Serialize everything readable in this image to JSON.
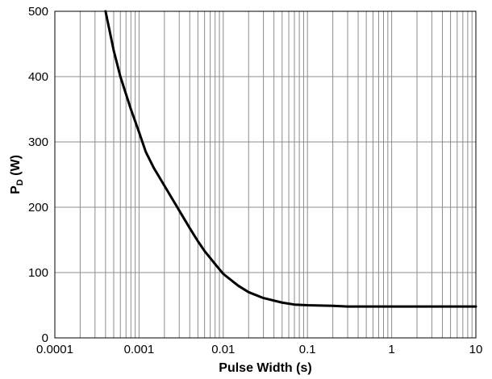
{
  "chart_data": {
    "type": "line",
    "title": "",
    "xlabel": "Pulse Width (s)",
    "ylabel": {
      "main": "P",
      "subscript": "D",
      "suffix": " (W)"
    },
    "x_scale": "log",
    "xlim": [
      0.0001,
      10
    ],
    "ylim": [
      0,
      500
    ],
    "x_ticks": [
      0.0001,
      0.001,
      0.01,
      0.1,
      1,
      10
    ],
    "x_tick_labels": [
      "0.0001",
      "0.001",
      "0.01",
      "0.1",
      "1",
      "10"
    ],
    "y_ticks": [
      0,
      100,
      200,
      300,
      400,
      500
    ],
    "y_tick_labels": [
      "0",
      "100",
      "200",
      "300",
      "400",
      "500"
    ],
    "grid": true,
    "legend": "none",
    "series": [
      {
        "color": "#000000",
        "x": [
          0.0004,
          0.0005,
          0.0006,
          0.0008,
          0.001,
          0.0012,
          0.0015,
          0.002,
          0.003,
          0.004,
          0.005,
          0.006,
          0.008,
          0.01,
          0.015,
          0.02,
          0.03,
          0.05,
          0.07,
          0.1,
          0.2,
          0.3,
          0.5,
          1,
          2,
          5,
          10
        ],
        "y": [
          500,
          440,
          400,
          350,
          315,
          285,
          260,
          233,
          195,
          168,
          148,
          133,
          113,
          98,
          80,
          70,
          61,
          54,
          51,
          50,
          49,
          48,
          48,
          48,
          48,
          48,
          48
        ]
      }
    ]
  }
}
